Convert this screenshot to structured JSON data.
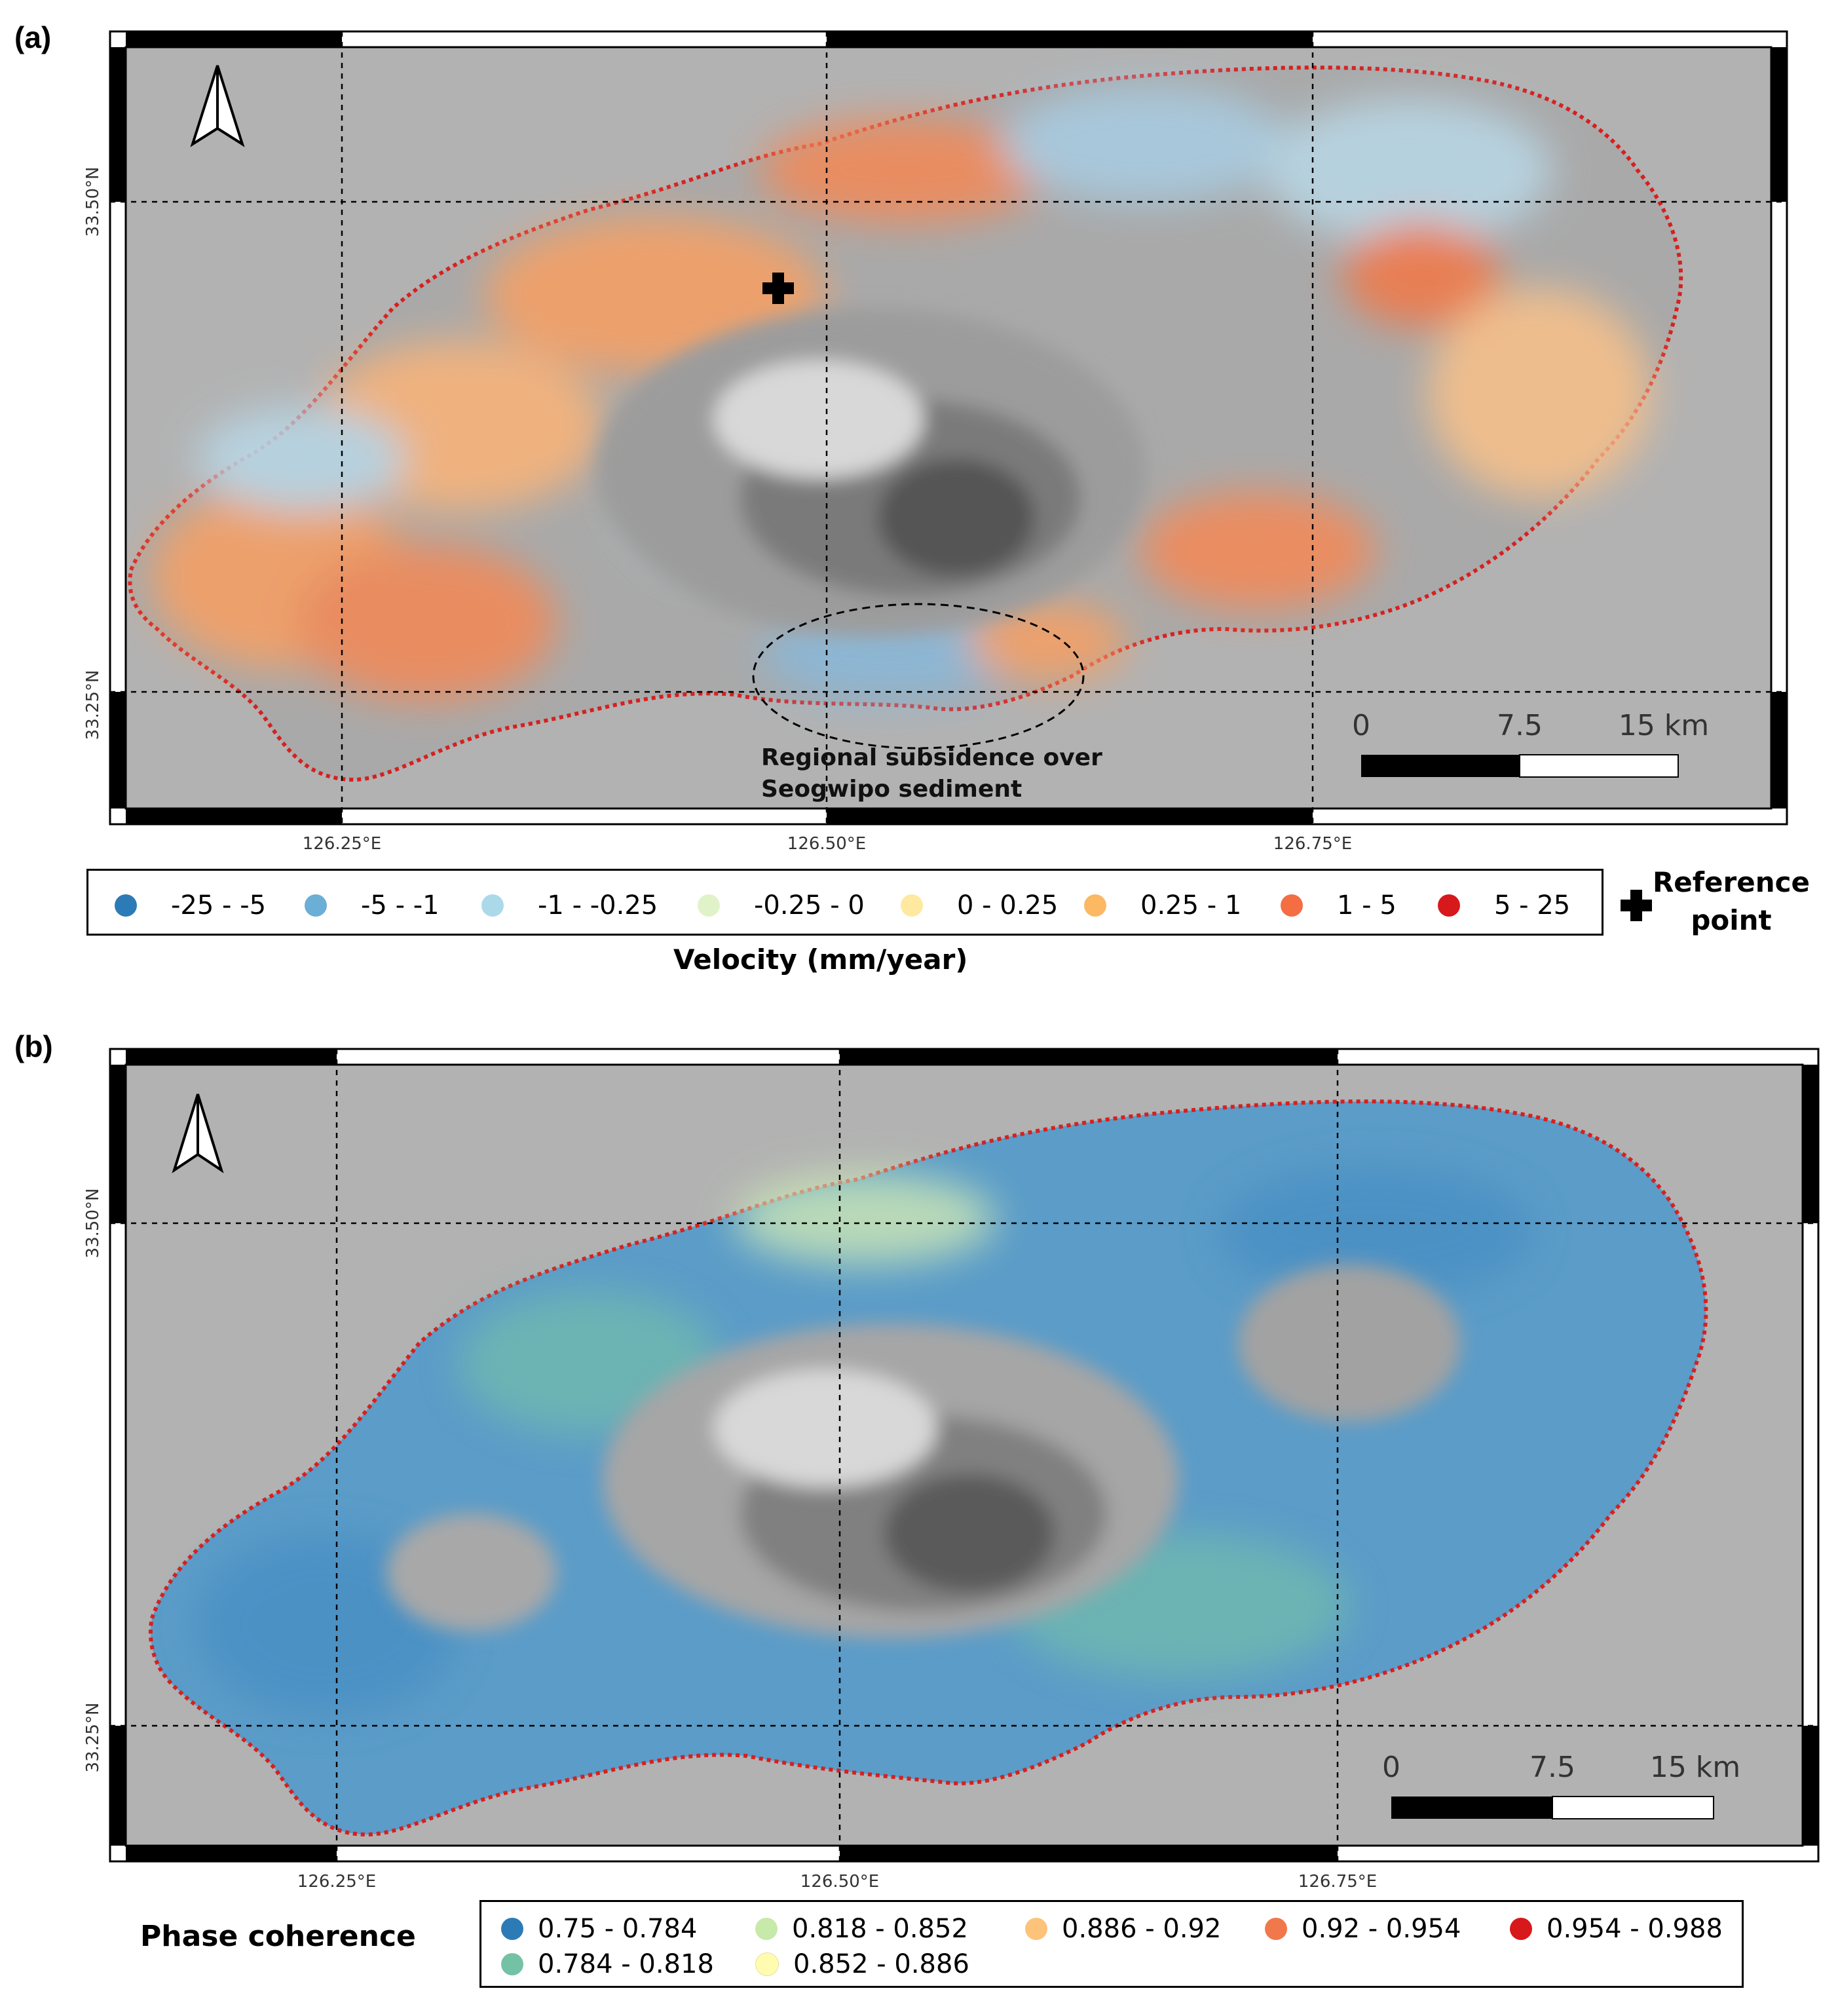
{
  "panel_a": {
    "label": "(a)",
    "lat_ticks": [
      "33.50°N",
      "33.25°N"
    ],
    "lon_ticks": [
      "126.25°E",
      "126.50°E",
      "126.75°E"
    ],
    "scale_bar": [
      "0",
      "7.5",
      "15 km"
    ],
    "annotation": [
      "Regional subsidence over",
      "Seogwipo sediment"
    ],
    "legend_title": "Velocity (mm/year)",
    "legend": [
      {
        "label": "-25 - -5",
        "color": "#2c7bb6"
      },
      {
        "label": "-5 - -1",
        "color": "#6baed6"
      },
      {
        "label": "-1 - -0.25",
        "color": "#abd9e9"
      },
      {
        "label": "-0.25 - 0",
        "color": "#e0f3c8"
      },
      {
        "label": "0 - 0.25",
        "color": "#ffe9a0"
      },
      {
        "label": "0.25 - 1",
        "color": "#fdb863"
      },
      {
        "label": "1 - 5",
        "color": "#f46d43"
      },
      {
        "label": "5 - 25",
        "color": "#d7191c"
      }
    ],
    "reference": "Reference point",
    "reference_lines": [
      "Reference",
      "point"
    ]
  },
  "panel_b": {
    "label": "(b)",
    "lat_ticks": [
      "33.50°N",
      "33.25°N"
    ],
    "lon_ticks": [
      "126.25°E",
      "126.50°E",
      "126.75°E"
    ],
    "scale_bar": [
      "0",
      "7.5",
      "15 km"
    ],
    "legend_title": "Phase coherence",
    "legend": [
      {
        "label": "0.75 - 0.784",
        "color": "#2c7bb6"
      },
      {
        "label": "0.818 - 0.852",
        "color": "#c7e9a9"
      },
      {
        "label": "0.886 - 0.92",
        "color": "#fdc37a"
      },
      {
        "label": "0.92 - 0.954",
        "color": "#f0784a"
      },
      {
        "label": "0.954 - 0.988",
        "color": "#d7191c"
      },
      {
        "label": "0.784 - 0.818",
        "color": "#74c2a5"
      },
      {
        "label": "0.852 - 0.886",
        "color": "#fffcb0"
      }
    ]
  },
  "colors": {
    "map_background": "#b2b2b2",
    "coastline": "#d62020"
  },
  "icons": [
    "north-arrow-icon",
    "reference-cross-icon"
  ]
}
